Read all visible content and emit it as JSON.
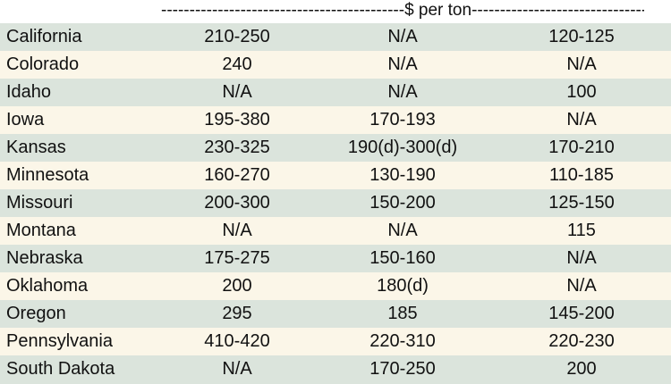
{
  "header": {
    "label": "-------------------------------------------$ per ton---------------------------------------------"
  },
  "rows": [
    {
      "state": "California",
      "c1": "210-250",
      "c2": "N/A",
      "c3": "120-125"
    },
    {
      "state": "Colorado",
      "c1": "240",
      "c2": "N/A",
      "c3": "N/A"
    },
    {
      "state": "Idaho",
      "c1": "N/A",
      "c2": "N/A",
      "c3": "100"
    },
    {
      "state": "Iowa",
      "c1": "195-380",
      "c2": "170-193",
      "c3": "N/A"
    },
    {
      "state": "Kansas",
      "c1": "230-325",
      "c2": "190(d)-300(d)",
      "c3": "170-210"
    },
    {
      "state": "Minnesota",
      "c1": "160-270",
      "c2": "130-190",
      "c3": "110-185"
    },
    {
      "state": "Missouri",
      "c1": "200-300",
      "c2": "150-200",
      "c3": "125-150"
    },
    {
      "state": "Montana",
      "c1": "N/A",
      "c2": "N/A",
      "c3": "115"
    },
    {
      "state": "Nebraska",
      "c1": "175-275",
      "c2": "150-160",
      "c3": "N/A"
    },
    {
      "state": "Oklahoma",
      "c1": "200",
      "c2": "180(d)",
      "c3": "N/A"
    },
    {
      "state": "Oregon",
      "c1": "295",
      "c2": "185",
      "c3": "145-200"
    },
    {
      "state": "Pennsylvania",
      "c1": "410-420",
      "c2": "220-310",
      "c3": "220-230"
    },
    {
      "state": "South Dakota",
      "c1": "N/A",
      "c2": "170-250",
      "c3": "200"
    }
  ],
  "colors": {
    "row_even": "#dbe4dc",
    "row_odd": "#fbf6e8",
    "text": "#111111"
  }
}
